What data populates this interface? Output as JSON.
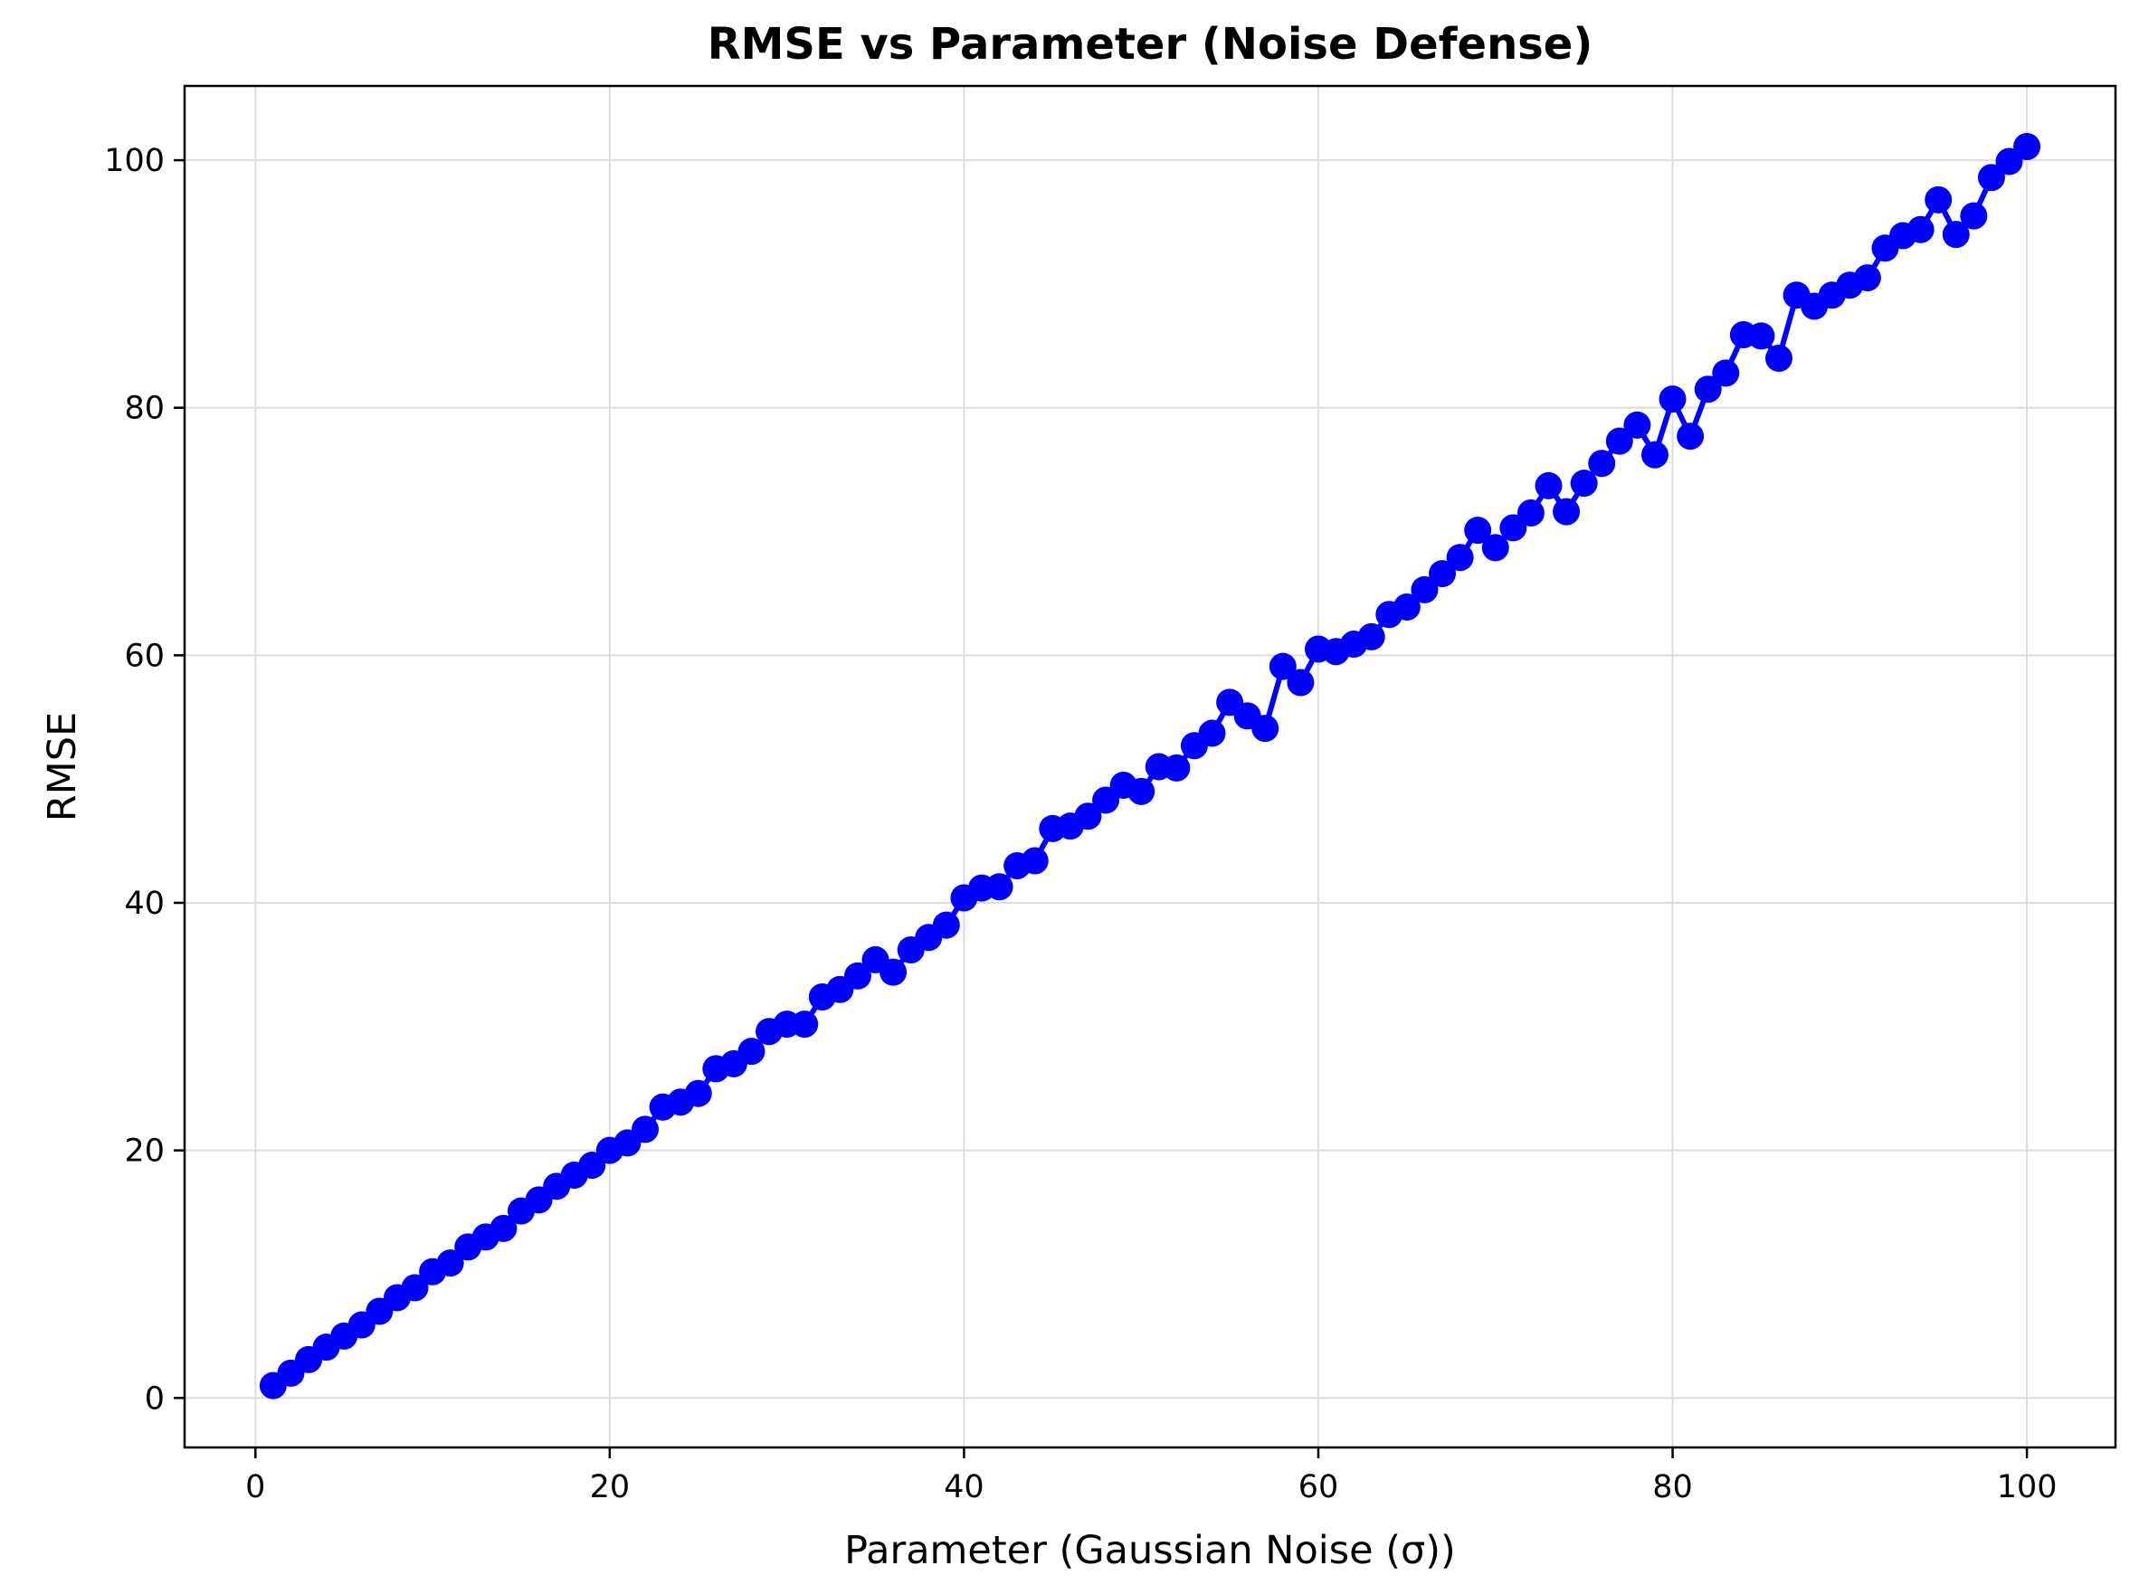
{
  "chart_data": {
    "type": "line",
    "title": "RMSE vs Parameter (Noise Defense)",
    "xlabel": "Parameter (Gaussian Noise (σ))",
    "ylabel": "RMSE",
    "xlim": [
      -4,
      105
    ],
    "ylim": [
      -4,
      106
    ],
    "xticks": [
      0,
      20,
      40,
      60,
      80,
      100
    ],
    "yticks": [
      0,
      20,
      40,
      60,
      80,
      100
    ],
    "grid": true,
    "color": "#0000ff",
    "marker": "circle",
    "series": [
      {
        "x": [
          1,
          2,
          3,
          4,
          5,
          6,
          7,
          8,
          9,
          10,
          11,
          12,
          13,
          14,
          15,
          16,
          17,
          18,
          19,
          20,
          21,
          22,
          23,
          24,
          25,
          26,
          27,
          28,
          29,
          30,
          31,
          32,
          33,
          34,
          35,
          36,
          37,
          38,
          39,
          40,
          41,
          42,
          43,
          44,
          45,
          46,
          47,
          48,
          49,
          50,
          51,
          52,
          53,
          54,
          55,
          56,
          57,
          58,
          59,
          60,
          61,
          62,
          63,
          64,
          65,
          66,
          67,
          68,
          69,
          70,
          71,
          72,
          73,
          74,
          75,
          76,
          77,
          78,
          79,
          80,
          81,
          82,
          83,
          84,
          85,
          86,
          87,
          88,
          89,
          90,
          91,
          92,
          93,
          94,
          95,
          96,
          97,
          98,
          99,
          100
        ],
        "values": [
          1.0,
          2.0,
          3.1,
          4.1,
          5.0,
          5.9,
          7.0,
          8.1,
          8.9,
          10.2,
          10.9,
          12.2,
          13.0,
          13.7,
          15.1,
          16.0,
          17.1,
          18.0,
          18.8,
          20.0,
          20.6,
          21.7,
          23.5,
          23.9,
          24.6,
          26.6,
          27.0,
          28.0,
          29.6,
          30.2,
          30.2,
          32.4,
          33.0,
          34.1,
          35.4,
          34.4,
          36.2,
          37.2,
          38.2,
          40.4,
          41.2,
          41.3,
          43.0,
          43.4,
          46.0,
          46.2,
          47.0,
          48.3,
          49.5,
          49.0,
          51.0,
          50.9,
          52.7,
          53.7,
          56.2,
          55.1,
          54.1,
          59.1,
          57.8,
          60.5,
          60.3,
          60.9,
          61.5,
          63.3,
          63.9,
          65.3,
          66.6,
          67.9,
          70.1,
          68.7,
          70.3,
          71.5,
          73.7,
          71.6,
          73.9,
          75.5,
          77.3,
          78.6,
          76.2,
          80.7,
          77.7,
          81.5,
          82.8,
          85.9,
          85.8,
          84.0,
          89.1,
          88.2,
          89.1,
          89.9,
          90.5,
          92.9,
          93.9,
          94.4,
          96.8,
          94.0,
          95.5,
          98.6,
          99.9,
          101.1
        ]
      }
    ]
  }
}
